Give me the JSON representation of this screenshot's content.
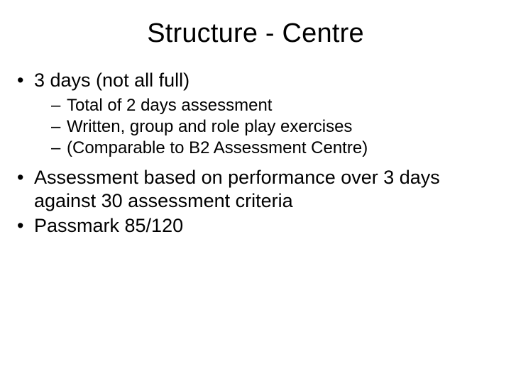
{
  "colors": {
    "background": "#ffffff",
    "text": "#000000"
  },
  "typography": {
    "family": "Arial",
    "title_fontsize": 38,
    "body_fontsize": 27,
    "sub_fontsize": 24,
    "title_weight": 400
  },
  "title": "Structure - Centre",
  "bullets": {
    "item0": {
      "text": "3 days (not all full)",
      "sub": {
        "s0": "Total of 2 days assessment",
        "s1": "Written, group and role play exercises",
        "s2": "(Comparable to B2 Assessment Centre)"
      }
    },
    "item1": {
      "text": "Assessment based on performance over 3 days against 30 assessment criteria"
    },
    "item2": {
      "text": "Passmark 85/120"
    }
  }
}
